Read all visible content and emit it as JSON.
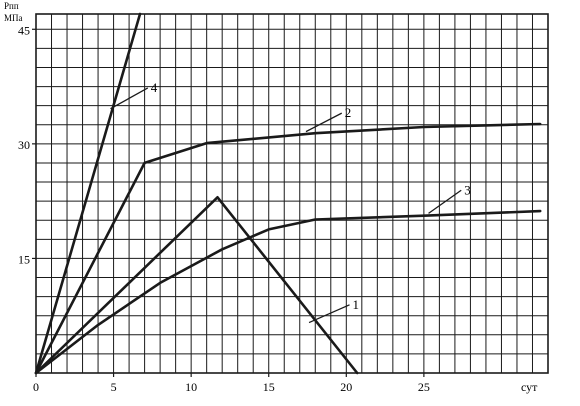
{
  "chart_data": {
    "type": "line",
    "ylabel_line1": "Pпп",
    "ylabel_line2": "МПа",
    "xlabel": "сут",
    "x_ticks": [
      {
        "value": 0,
        "label": "0"
      },
      {
        "value": 5,
        "label": "5"
      },
      {
        "value": 10,
        "label": "10"
      },
      {
        "value": 15,
        "label": "15"
      },
      {
        "value": 20,
        "label": "20"
      },
      {
        "value": 25,
        "label": "25"
      }
    ],
    "y_ticks": [
      {
        "value": 15,
        "label": "15"
      },
      {
        "value": 30,
        "label": "30"
      },
      {
        "value": 45,
        "label": "45"
      }
    ],
    "xlim": [
      0,
      33
    ],
    "ylim": [
      0,
      47
    ],
    "grid": true,
    "grid_minor_step_x": 1,
    "grid_minor_step_y": 2.5,
    "series": [
      {
        "label": "1",
        "x": [
          0,
          11.7,
          20.7
        ],
        "y": [
          0,
          23,
          0
        ],
        "label_at": [
          20.4,
          8.4
        ],
        "leader_from": [
          17.6,
          6.6
        ]
      },
      {
        "label": "2",
        "x": [
          0,
          7,
          11,
          18,
          25,
          32.5
        ],
        "y": [
          0,
          27.5,
          30.1,
          31.4,
          32.2,
          32.6
        ],
        "label_at": [
          19.9,
          33.5
        ],
        "leader_from": [
          17.4,
          31.6
        ]
      },
      {
        "label": "3",
        "x": [
          0,
          4,
          8,
          12,
          15,
          18,
          25,
          32.5
        ],
        "y": [
          0,
          6.3,
          11.8,
          16.2,
          18.8,
          20.1,
          20.6,
          21.2
        ],
        "label_at": [
          27.6,
          23.4
        ],
        "leader_from": [
          25.3,
          20.9
        ]
      },
      {
        "label": "4",
        "x": [
          0,
          6.7
        ],
        "y": [
          0,
          47
        ],
        "label_at": [
          7.4,
          36.8
        ],
        "leader_from": [
          4.8,
          34.6
        ]
      }
    ],
    "colors": {
      "line": "#1a1a1a",
      "grid": "#1a1a1a",
      "background": "#ffffff"
    }
  }
}
